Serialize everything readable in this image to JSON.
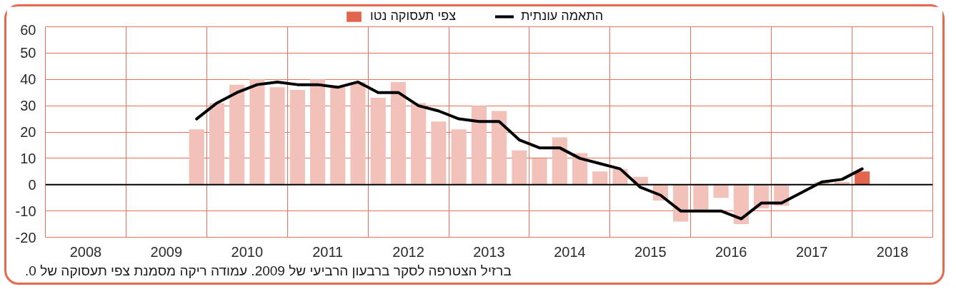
{
  "chart_data": {
    "type": "bar",
    "x": [
      2009.875,
      2010.125,
      2010.375,
      2010.625,
      2010.875,
      2011.125,
      2011.375,
      2011.625,
      2011.875,
      2012.125,
      2012.375,
      2012.625,
      2012.875,
      2013.125,
      2013.375,
      2013.625,
      2013.875,
      2014.125,
      2014.375,
      2014.625,
      2014.875,
      2015.125,
      2015.375,
      2015.625,
      2015.875,
      2016.125,
      2016.375,
      2016.625,
      2016.875,
      2017.125,
      2017.375,
      2017.625,
      2017.875,
      2018.125
    ],
    "xlim": [
      2008,
      2019
    ],
    "xticks": [
      {
        "value": 2008,
        "label": null
      },
      {
        "value": 2008.5,
        "label": "2008"
      },
      {
        "value": 2009,
        "label": null
      },
      {
        "value": 2009.5,
        "label": "2009"
      },
      {
        "value": 2010,
        "label": null
      },
      {
        "value": 2010.5,
        "label": "2010"
      },
      {
        "value": 2011,
        "label": null
      },
      {
        "value": 2011.5,
        "label": "2011"
      },
      {
        "value": 2012,
        "label": null
      },
      {
        "value": 2012.5,
        "label": "2012"
      },
      {
        "value": 2013,
        "label": null
      },
      {
        "value": 2013.5,
        "label": "2013"
      },
      {
        "value": 2014,
        "label": null
      },
      {
        "value": 2014.5,
        "label": "2014"
      },
      {
        "value": 2015,
        "label": null
      },
      {
        "value": 2015.5,
        "label": "2015"
      },
      {
        "value": 2016,
        "label": null
      },
      {
        "value": 2016.5,
        "label": "2016"
      },
      {
        "value": 2017,
        "label": null
      },
      {
        "value": 2017.5,
        "label": "2017"
      },
      {
        "value": 2018,
        "label": null
      },
      {
        "value": 2018.5,
        "label": "2018"
      },
      {
        "value": 2019,
        "label": null
      }
    ],
    "ylim": [
      -20,
      60
    ],
    "yticks": [
      -20,
      -10,
      0,
      10,
      20,
      30,
      40,
      50,
      60
    ],
    "grid": true,
    "legend": "top",
    "ref_lines": [
      {
        "axis": "y",
        "value": 0,
        "color": "#000000"
      }
    ],
    "series": [
      {
        "name": "צפי תעסוקה נטו",
        "color": "#e2654e",
        "colors": [
          "#f2c2ba",
          "#f2c2ba",
          "#f2c2ba",
          "#f2c2ba",
          "#f2c2ba",
          "#f2c2ba",
          "#f2c2ba",
          "#f2c2ba",
          "#f2c2ba",
          "#f2c2ba",
          "#f2c2ba",
          "#f2c2ba",
          "#f2c2ba",
          "#f2c2ba",
          "#f2c2ba",
          "#f2c2ba",
          "#f2c2ba",
          "#f2c2ba",
          "#f2c2ba",
          "#f2c2ba",
          "#f2c2ba",
          "#f2c2ba",
          "#f2c2ba",
          "#f2c2ba",
          "#f2c2ba",
          "#f2c2ba",
          "#f2c2ba",
          "#f2c2ba",
          "#f2c2ba",
          "#f2c2ba",
          "#f2c2ba",
          "#f2c2ba",
          "#f2c2ba",
          "#e2654e"
        ],
        "values": [
          21,
          31,
          38,
          40,
          37,
          36,
          40,
          37,
          39,
          33,
          39,
          31,
          24,
          21,
          30,
          28,
          13,
          10,
          18,
          12,
          5,
          6,
          3,
          -6,
          -14,
          -10,
          -5,
          -15,
          -9,
          -8,
          0,
          1,
          1,
          5
        ]
      },
      {
        "type": "line",
        "name": "התאמה עונתית",
        "color": "#000000",
        "values": [
          25,
          31,
          35,
          38,
          39,
          38,
          38,
          37,
          39,
          35,
          35,
          30,
          28,
          25,
          24,
          24,
          17,
          14,
          14,
          10,
          8,
          6,
          -1,
          -4,
          -10,
          -10,
          -10,
          -13,
          -7,
          -7,
          -3,
          1,
          2,
          6
        ]
      }
    ],
    "annotations": [
      "ברזיל הצטרפה לסקר ברבעון הרביעי של 2009. עמודה ריקה מסמנת צפי תעסוקה של 0."
    ]
  }
}
